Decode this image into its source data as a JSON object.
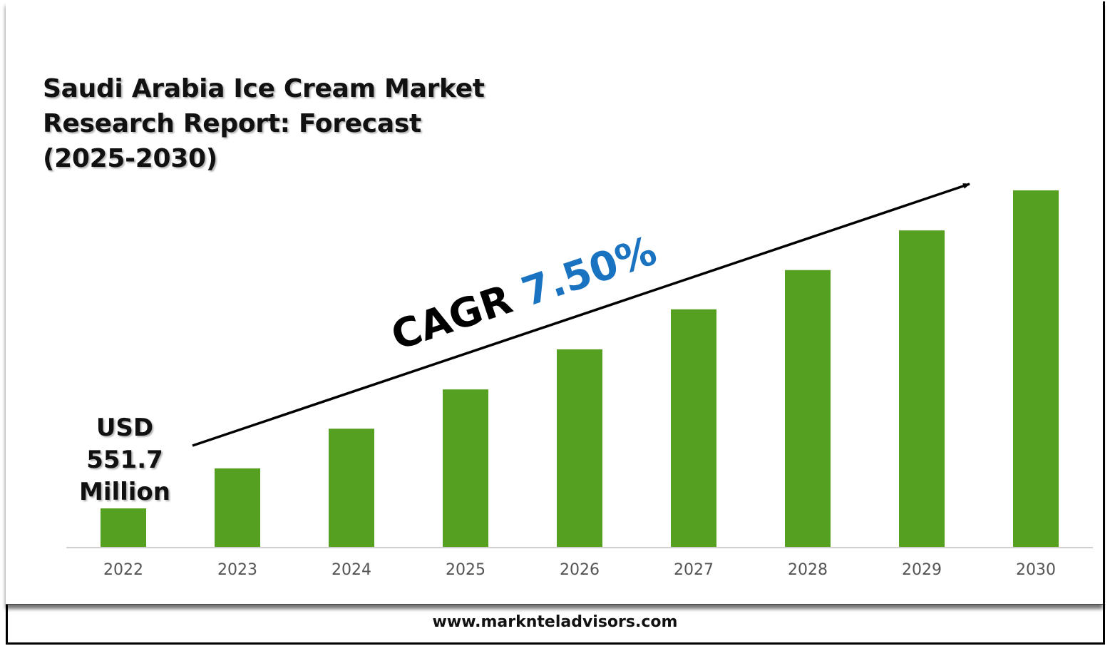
{
  "chart_data": {
    "type": "bar",
    "title": "Saudi Arabia Ice Cream Market Research Report: Forecast (2025-2030)",
    "categories": [
      "2022",
      "2023",
      "2024",
      "2025",
      "2026",
      "2027",
      "2028",
      "2029",
      "2030"
    ],
    "values": [
      1.0,
      2.04,
      3.07,
      4.09,
      5.13,
      6.17,
      7.19,
      8.22,
      9.26
    ],
    "value_note": "relative bar heights (2022 = 1); only 2022 value labeled",
    "ylim": [
      0,
      9.26
    ],
    "xlabel": "",
    "ylabel": "",
    "grid": false,
    "bar_color": "#55a021",
    "annotations": {
      "start_label_lines": [
        "USD",
        "551.7",
        "Million"
      ],
      "cagr_prefix": "CAGR",
      "cagr_value": "7.50%",
      "cagr_color": "#1a73c1"
    }
  },
  "title_lines": [
    "Saudi Arabia Ice Cream Market",
    "Research Report: Forecast",
    "(2025-2030)"
  ],
  "footer": "www.marknteladvisors.com"
}
